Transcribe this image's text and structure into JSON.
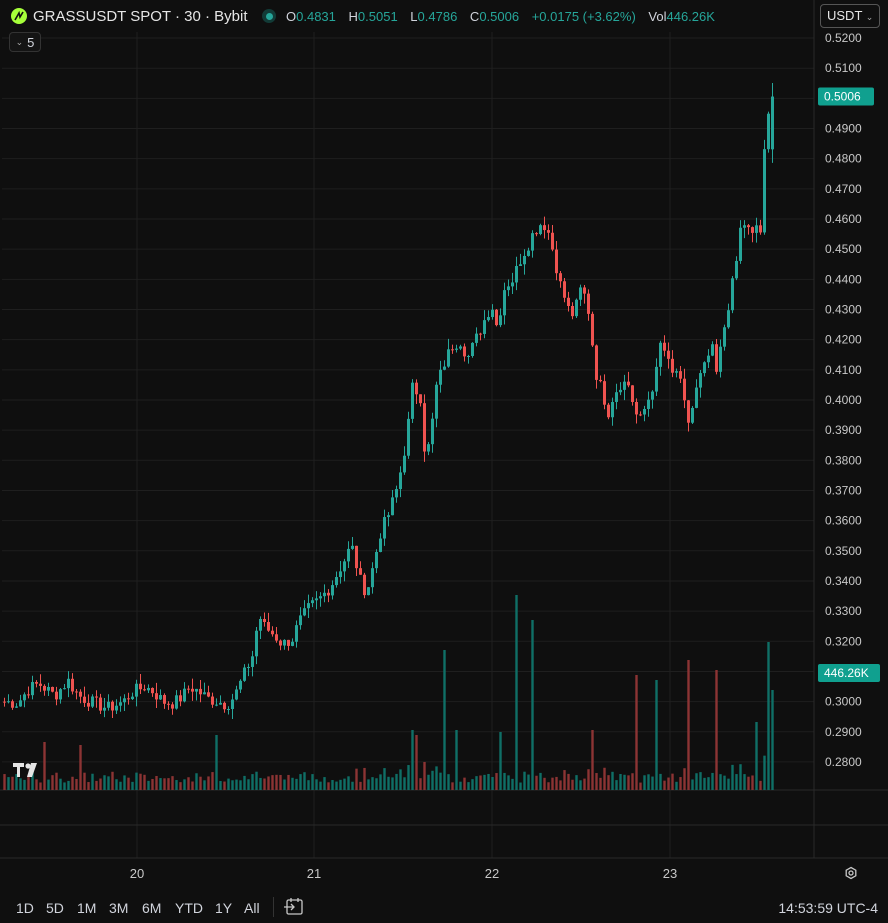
{
  "header": {
    "title": "GRASSUSDT SPOT · 30 · Bybit",
    "ohlc": [
      {
        "key": "O",
        "value": "0.4831"
      },
      {
        "key": "H",
        "value": "0.5051"
      },
      {
        "key": "L",
        "value": "0.4786"
      },
      {
        "key": "C",
        "value": "0.5006"
      }
    ],
    "change": "+0.0175 (+3.62%)",
    "vol_label": "Vol",
    "vol_value": "446.26K",
    "currency": "USDT",
    "indicator_count": "5"
  },
  "colors": {
    "background": "#0f0f0f",
    "grid": "#1f1f1f",
    "up": "#26a69a",
    "down": "#ef5350",
    "vol_up": "#0f6f66",
    "vol_down": "#8c3434",
    "price_tag": "#10a08f"
  },
  "chart_data": {
    "type": "candlestick",
    "symbol": "GRASSUSDT",
    "interval": "30",
    "y_ticks": [
      "0.5200",
      "0.5100",
      "0.5000",
      "0.4900",
      "0.4800",
      "0.4700",
      "0.4600",
      "0.4500",
      "0.4400",
      "0.4300",
      "0.4200",
      "0.4100",
      "0.4000",
      "0.3900",
      "0.3800",
      "0.3700",
      "0.3600",
      "0.3500",
      "0.3400",
      "0.3300",
      "0.3200",
      "0.3100",
      "0.3000",
      "0.2900",
      "0.2800"
    ],
    "y_range": [
      0.276,
      0.522
    ],
    "x_ticks": [
      "20",
      "21",
      "22",
      "23"
    ],
    "last_price_label": "0.5006",
    "volume_label": "446.26K",
    "grid": true,
    "path_points": [
      [
        0,
        0.3
      ],
      [
        10,
        0.2995
      ],
      [
        18,
        0.304
      ],
      [
        26,
        0.306
      ],
      [
        38,
        0.302
      ],
      [
        48,
        0.307
      ],
      [
        56,
        0.302
      ],
      [
        66,
        0.2998
      ],
      [
        78,
        0.2978
      ],
      [
        90,
        0.3
      ],
      [
        96,
        0.303
      ],
      [
        106,
        0.305
      ],
      [
        112,
        0.3035
      ],
      [
        120,
        0.3
      ],
      [
        128,
        0.2995
      ],
      [
        135,
        0.302
      ],
      [
        140,
        0.305
      ],
      [
        146,
        0.3035
      ],
      [
        154,
        0.301
      ],
      [
        162,
        0.3
      ],
      [
        168,
        0.299
      ],
      [
        174,
        0.302
      ],
      [
        182,
        0.31
      ],
      [
        188,
        0.316
      ],
      [
        192,
        0.329
      ],
      [
        196,
        0.325
      ],
      [
        204,
        0.322
      ],
      [
        210,
        0.319
      ],
      [
        218,
        0.321
      ],
      [
        222,
        0.326
      ],
      [
        230,
        0.331
      ],
      [
        238,
        0.334
      ],
      [
        246,
        0.338
      ],
      [
        252,
        0.343
      ],
      [
        258,
        0.348
      ],
      [
        262,
        0.352
      ],
      [
        266,
        0.345
      ],
      [
        270,
        0.338
      ],
      [
        274,
        0.337
      ],
      [
        278,
        0.344
      ],
      [
        284,
        0.356
      ],
      [
        290,
        0.362
      ],
      [
        296,
        0.37
      ],
      [
        300,
        0.378
      ],
      [
        304,
        0.388
      ],
      [
        308,
        0.404
      ],
      [
        314,
        0.402
      ],
      [
        318,
        0.38
      ],
      [
        322,
        0.388
      ],
      [
        326,
        0.404
      ],
      [
        332,
        0.412
      ],
      [
        338,
        0.418
      ],
      [
        344,
        0.42
      ],
      [
        350,
        0.414
      ],
      [
        356,
        0.42
      ],
      [
        362,
        0.426
      ],
      [
        368,
        0.432
      ],
      [
        372,
        0.424
      ],
      [
        378,
        0.438
      ],
      [
        384,
        0.44
      ],
      [
        390,
        0.447
      ],
      [
        396,
        0.452
      ],
      [
        400,
        0.456
      ],
      [
        406,
        0.459
      ],
      [
        410,
        0.457
      ],
      [
        414,
        0.45
      ],
      [
        420,
        0.438
      ],
      [
        426,
        0.43
      ],
      [
        430,
        0.428
      ],
      [
        436,
        0.438
      ],
      [
        442,
        0.428
      ],
      [
        446,
        0.41
      ],
      [
        452,
        0.402
      ],
      [
        456,
        0.396
      ],
      [
        460,
        0.402
      ],
      [
        466,
        0.406
      ],
      [
        472,
        0.405
      ],
      [
        476,
        0.396
      ],
      [
        480,
        0.393
      ],
      [
        486,
        0.4
      ],
      [
        492,
        0.408
      ],
      [
        496,
        0.42
      ],
      [
        500,
        0.414
      ],
      [
        504,
        0.408
      ],
      [
        508,
        0.41
      ],
      [
        512,
        0.402
      ],
      [
        516,
        0.392
      ],
      [
        520,
        0.398
      ],
      [
        524,
        0.406
      ],
      [
        530,
        0.412
      ],
      [
        534,
        0.418
      ],
      [
        538,
        0.408
      ],
      [
        542,
        0.42
      ],
      [
        546,
        0.43
      ],
      [
        552,
        0.443
      ],
      [
        556,
        0.457
      ],
      [
        560,
        0.459
      ],
      [
        564,
        0.453
      ],
      [
        568,
        0.458
      ],
      [
        572,
        0.455
      ],
      [
        574,
        0.482
      ],
      [
        578,
        0.498
      ],
      [
        580,
        0.5006
      ]
    ]
  },
  "bottom_bar": {
    "ranges": [
      "1D",
      "5D",
      "1M",
      "3M",
      "6M",
      "YTD",
      "1Y",
      "All"
    ],
    "clock": "14:53:59 UTC-4"
  }
}
